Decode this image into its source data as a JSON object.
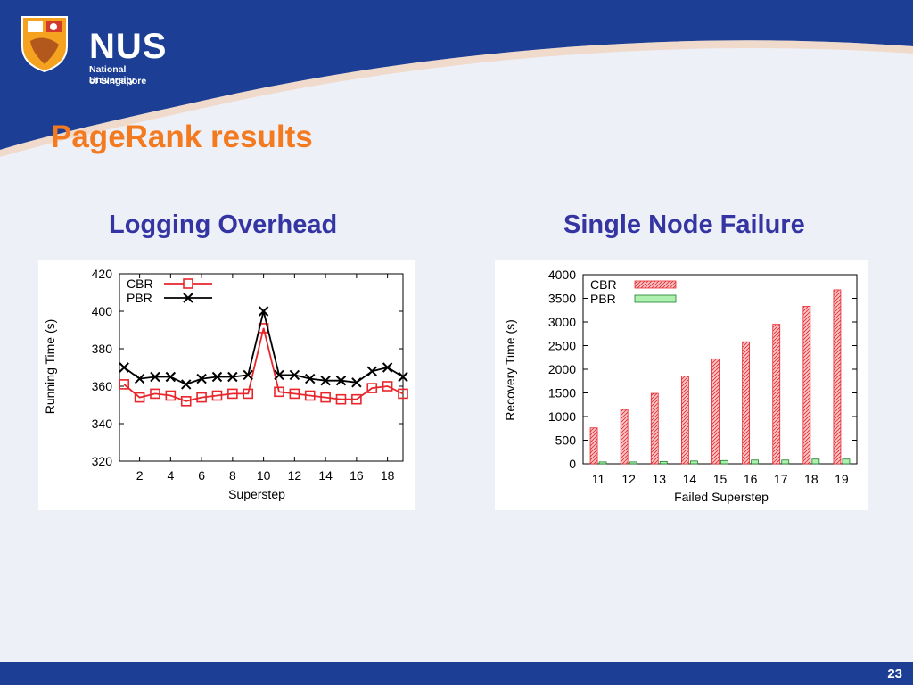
{
  "slide": {
    "title": "PageRank results",
    "page_number": "23",
    "logo": {
      "wordmark": "NUS",
      "line1": "National University",
      "line2": "of Singapore"
    }
  },
  "colors": {
    "header": "#1c3f95",
    "title": "#f47a20",
    "heading": "#3434a3",
    "cbr": "#e8262b",
    "pbr": "#000000",
    "cbr_fill": "#f6c7c9",
    "pbr_fill": "#aef0b0"
  },
  "chart_data": [
    {
      "type": "line",
      "title": "Logging Overhead",
      "xlabel": "Superstep",
      "ylabel": "Running Time (s)",
      "xlim": [
        0.7,
        19
      ],
      "ylim": [
        320,
        420
      ],
      "xticks": [
        2,
        4,
        6,
        8,
        10,
        12,
        14,
        16,
        18
      ],
      "yticks": [
        320,
        340,
        360,
        380,
        400,
        420
      ],
      "legend": "top-left",
      "x": [
        1,
        2,
        3,
        4,
        5,
        6,
        7,
        8,
        9,
        10,
        11,
        12,
        13,
        14,
        15,
        16,
        17,
        18,
        19
      ],
      "series": [
        {
          "name": "CBR",
          "marker": "square",
          "values": [
            361,
            354,
            356,
            355,
            352,
            354,
            355,
            356,
            356,
            391,
            357,
            356,
            355,
            354,
            353,
            353,
            359,
            360,
            356
          ]
        },
        {
          "name": "PBR",
          "marker": "x",
          "values": [
            370,
            364,
            365,
            365,
            361,
            364,
            365,
            365,
            366,
            400,
            366,
            366,
            364,
            363,
            363,
            362,
            368,
            370,
            365
          ]
        }
      ]
    },
    {
      "type": "bar",
      "title": "Single Node Failure",
      "xlabel": "Failed Superstep",
      "ylabel": "Recovery Time (s)",
      "ylim": [
        0,
        4000
      ],
      "yticks": [
        0,
        500,
        1000,
        1500,
        2000,
        2500,
        3000,
        3500,
        4000
      ],
      "legend": "top-left",
      "categories": [
        "11",
        "12",
        "13",
        "14",
        "15",
        "16",
        "17",
        "18",
        "19"
      ],
      "series": [
        {
          "name": "CBR",
          "values": [
            760,
            1150,
            1490,
            1860,
            2220,
            2580,
            2950,
            3330,
            3680
          ]
        },
        {
          "name": "PBR",
          "values": [
            40,
            40,
            50,
            60,
            70,
            80,
            80,
            100,
            100
          ]
        }
      ]
    }
  ]
}
